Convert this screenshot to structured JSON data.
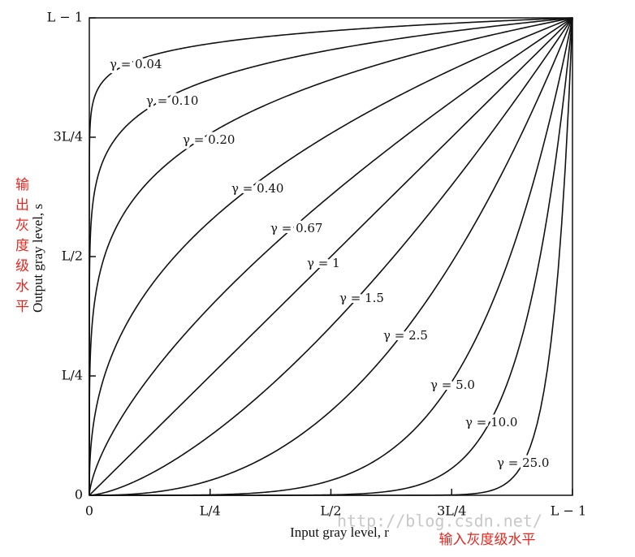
{
  "chart_data": {
    "type": "power-law",
    "x_label": "Input gray level, r",
    "y_label": "Output gray level, s",
    "xlim": [
      0,
      1
    ],
    "ylim": [
      0,
      1
    ],
    "xticks": [
      0,
      {
        "value": 0.25,
        "label": "L/4"
      },
      {
        "value": 0.5,
        "label": "L/2"
      },
      {
        "value": 0.75,
        "label": "3L/4"
      },
      {
        "value": 1,
        "label": "L − 1"
      }
    ],
    "yticks": [
      0,
      {
        "value": 0.25,
        "label": "L/4"
      },
      {
        "value": 0.5,
        "label": "L/2"
      },
      {
        "value": 0.75,
        "label": "3L/4"
      },
      {
        "value": 1,
        "label": "L − 1"
      }
    ],
    "color": "#111111",
    "series": [
      {
        "gamma": 0.04,
        "label": "γ = 0.04"
      },
      {
        "gamma": 0.1,
        "label": "γ = 0.10"
      },
      {
        "gamma": 0.2,
        "label": "γ = 0.20"
      },
      {
        "gamma": 0.4,
        "label": "γ = 0.40"
      },
      {
        "gamma": 0.67,
        "label": "γ = 0.67"
      },
      {
        "gamma": 1,
        "label": "γ = 1"
      },
      {
        "gamma": 1.5,
        "label": "γ = 1.5"
      },
      {
        "gamma": 2.5,
        "label": "γ = 2.5"
      },
      {
        "gamma": 5,
        "label": "γ = 5.0"
      },
      {
        "gamma": 10,
        "label": "γ = 10.0"
      },
      {
        "gamma": 25,
        "label": "γ = 25.0"
      }
    ],
    "annotations": {
      "y_note": "输出灰度级水平",
      "x_note": "输入灰度级水平",
      "watermark": "http://blog.csdn.net/"
    }
  }
}
